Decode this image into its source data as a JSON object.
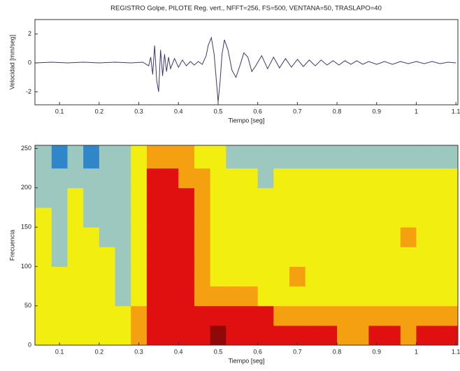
{
  "chart_data": [
    {
      "type": "line",
      "title": "REGISTRO Golpe, PILOTE Reg. vert., NFFT=256, FS=500, VENTANA=50, TRASLAPO=40",
      "xlabel": "Tiempo [seg]",
      "ylabel": "Velocidad [mm/seg]",
      "x": [
        0.04,
        0.08,
        0.12,
        0.16,
        0.2,
        0.24,
        0.28,
        0.31,
        0.325,
        0.33,
        0.335,
        0.34,
        0.345,
        0.35,
        0.355,
        0.36,
        0.365,
        0.37,
        0.375,
        0.38,
        0.39,
        0.4,
        0.41,
        0.42,
        0.43,
        0.44,
        0.45,
        0.46,
        0.47,
        0.475,
        0.483,
        0.49,
        0.495,
        0.5,
        0.505,
        0.51,
        0.516,
        0.525,
        0.535,
        0.545,
        0.555,
        0.565,
        0.575,
        0.585,
        0.595,
        0.61,
        0.625,
        0.64,
        0.655,
        0.67,
        0.685,
        0.7,
        0.715,
        0.73,
        0.745,
        0.76,
        0.775,
        0.79,
        0.805,
        0.82,
        0.835,
        0.85,
        0.865,
        0.88,
        0.9,
        0.92,
        0.94,
        0.96,
        0.98,
        1.0,
        1.02,
        1.04,
        1.06,
        1.08,
        1.1
      ],
      "values": [
        0,
        0.05,
        0,
        0.05,
        0,
        0.05,
        0,
        0.05,
        -0.2,
        0.4,
        -0.8,
        1.2,
        -1.2,
        -2.0,
        0.9,
        -0.9,
        0.6,
        -0.6,
        0.4,
        -0.4,
        0.3,
        -0.3,
        0.2,
        -0.2,
        0.1,
        -0.15,
        0.1,
        -0.1,
        0.5,
        1.2,
        1.75,
        0.6,
        -1.0,
        -2.7,
        -1.3,
        0.6,
        1.6,
        0.9,
        -0.5,
        -1.0,
        -0.2,
        0.7,
        0.4,
        -0.6,
        -0.2,
        0.5,
        -0.4,
        0.4,
        -0.35,
        0.3,
        -0.3,
        0.25,
        -0.25,
        0.2,
        -0.2,
        0.2,
        -0.15,
        0.15,
        -0.15,
        0.15,
        -0.1,
        0.15,
        -0.1,
        0.1,
        -0.1,
        0.1,
        -0.1,
        0.1,
        -0.05,
        0.1,
        -0.05,
        0.1,
        -0.05,
        0.05,
        0
      ],
      "color": "#3a3a70",
      "xlim": [
        0.038,
        1.105
      ],
      "ylim": [
        -2.9,
        3
      ],
      "xticks": [
        0.1,
        0.2,
        0.3,
        0.4,
        0.5,
        0.6,
        0.7,
        0.8,
        0.9,
        1,
        1.1
      ],
      "yticks": [
        -2,
        0,
        2
      ]
    },
    {
      "type": "heatmap",
      "xlabel": "Tiempo [seg]",
      "ylabel": "Frecuencia",
      "x": [
        0.06,
        0.1,
        0.14,
        0.18,
        0.22,
        0.26,
        0.3,
        0.34,
        0.38,
        0.42,
        0.46,
        0.5,
        0.54,
        0.58,
        0.62,
        0.66,
        0.7,
        0.74,
        0.78,
        0.82,
        0.86,
        0.9,
        0.94,
        0.98,
        1.02,
        1.06,
        1.1
      ],
      "y": [
        12.5,
        37.5,
        62.5,
        87.5,
        112.5,
        137.5,
        162.5,
        187.5,
        212.5,
        237.5
      ],
      "values": [
        [
          2,
          2,
          2,
          2,
          2,
          2,
          3,
          4,
          4,
          4,
          4,
          5,
          4,
          4,
          4,
          4,
          4,
          4,
          4,
          3,
          3,
          4,
          4,
          3,
          4,
          4,
          4
        ],
        [
          2,
          2,
          2,
          2,
          2,
          2,
          3,
          4,
          4,
          4,
          4,
          4,
          4,
          4,
          4,
          3,
          3,
          3,
          3,
          3,
          3,
          3,
          3,
          3,
          3,
          3,
          3
        ],
        [
          2,
          2,
          2,
          2,
          2,
          1,
          2,
          4,
          4,
          4,
          3,
          3,
          3,
          3,
          2,
          2,
          2,
          2,
          2,
          2,
          2,
          2,
          2,
          2,
          2,
          2,
          2
        ],
        [
          2,
          2,
          2,
          2,
          2,
          1,
          2,
          4,
          4,
          4,
          3,
          2,
          2,
          2,
          2,
          2,
          3,
          2,
          2,
          2,
          2,
          2,
          2,
          2,
          2,
          2,
          2
        ],
        [
          2,
          1,
          2,
          2,
          2,
          1,
          2,
          4,
          4,
          4,
          3,
          2,
          2,
          2,
          2,
          2,
          2,
          2,
          2,
          2,
          2,
          2,
          2,
          2,
          2,
          2,
          2
        ],
        [
          2,
          1,
          2,
          2,
          1,
          1,
          2,
          4,
          4,
          4,
          3,
          2,
          2,
          2,
          2,
          2,
          2,
          2,
          2,
          2,
          2,
          2,
          2,
          3,
          2,
          2,
          2
        ],
        [
          2,
          1,
          2,
          1,
          1,
          1,
          2,
          4,
          4,
          4,
          3,
          2,
          2,
          2,
          2,
          2,
          2,
          2,
          2,
          2,
          2,
          2,
          2,
          2,
          2,
          2,
          2
        ],
        [
          1,
          1,
          2,
          1,
          1,
          1,
          2,
          4,
          4,
          4,
          3,
          2,
          2,
          2,
          2,
          2,
          2,
          2,
          2,
          2,
          2,
          2,
          2,
          2,
          2,
          2,
          2
        ],
        [
          1,
          1,
          1,
          1,
          1,
          1,
          2,
          4,
          4,
          3,
          3,
          2,
          2,
          2,
          1,
          2,
          2,
          2,
          2,
          2,
          2,
          2,
          2,
          2,
          2,
          2,
          2
        ],
        [
          1,
          0,
          1,
          0,
          1,
          1,
          2,
          3,
          3,
          3,
          2,
          2,
          1,
          1,
          1,
          1,
          1,
          1,
          1,
          1,
          1,
          1,
          1,
          1,
          1,
          1,
          1
        ]
      ],
      "colormap": [
        "#2f86c8",
        "#9cc8c0",
        "#f2ee10",
        "#f5a010",
        "#e01010",
        "#900808"
      ],
      "xlim": [
        0.038,
        1.105
      ],
      "ylim": [
        0,
        254
      ],
      "xticks": [
        0.1,
        0.2,
        0.3,
        0.4,
        0.5,
        0.6,
        0.7,
        0.8,
        0.9,
        1,
        1.1
      ],
      "yticks": [
        0,
        50,
        100,
        150,
        200,
        250
      ]
    }
  ]
}
